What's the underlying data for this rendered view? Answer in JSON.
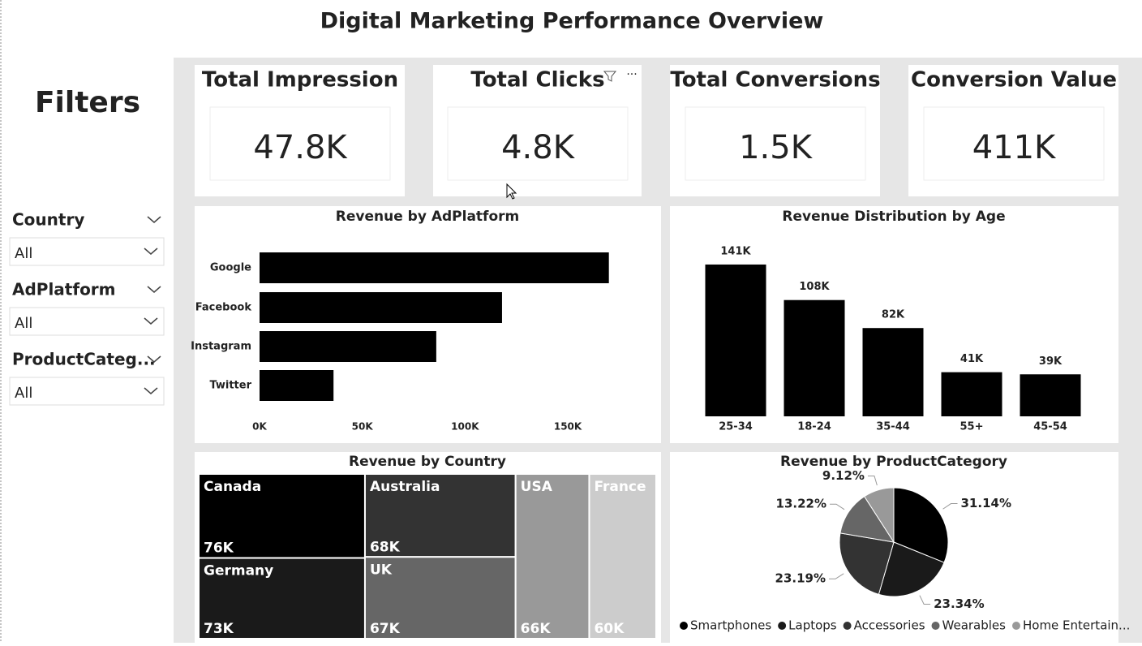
{
  "title": "Digital Marketing Performance Overview",
  "filters": {
    "title": "Filters",
    "items": [
      {
        "label": "Country",
        "value": "All"
      },
      {
        "label": "AdPlatform",
        "value": "All"
      },
      {
        "label": "ProductCateg...",
        "value": "All"
      }
    ]
  },
  "kpis": [
    {
      "label": "Total Impression",
      "value": "47.8K"
    },
    {
      "label": "Total Clicks",
      "value": "4.8K"
    },
    {
      "label": "Total Conversions",
      "value": "1.5K"
    },
    {
      "label": "Conversion Value",
      "value": "411K"
    }
  ],
  "chart_data": [
    {
      "type": "hbar",
      "title": "Revenue by AdPlatform",
      "categories": [
        "Google",
        "Facebook",
        "Instagram",
        "Twitter"
      ],
      "values": [
        170000,
        118000,
        86000,
        36000
      ],
      "color": "#000000",
      "xlim": [
        0,
        185000
      ],
      "xticks": [
        {
          "value": 0,
          "label": "0K"
        },
        {
          "value": 50000,
          "label": "50K"
        },
        {
          "value": 100000,
          "label": "100K"
        },
        {
          "value": 150000,
          "label": "150K"
        }
      ]
    },
    {
      "type": "bar",
      "title": "Revenue Distribution by Age",
      "categories": [
        "25-34",
        "18-24",
        "35-44",
        "55+",
        "45-54"
      ],
      "values": [
        141000,
        108000,
        82000,
        41000,
        39000
      ],
      "value_labels": [
        "141K",
        "108K",
        "82K",
        "41K",
        "39K"
      ],
      "color": "#000000",
      "ylim": [
        0,
        150000
      ]
    },
    {
      "type": "treemap",
      "title": "Revenue by Country",
      "categories": [
        "Canada",
        "Germany",
        "Australia",
        "UK",
        "USA",
        "France"
      ],
      "values": [
        76000,
        73000,
        68000,
        67000,
        66000,
        60000
      ],
      "value_labels": [
        "76K",
        "73K",
        "68K",
        "67K",
        "66K",
        "60K"
      ],
      "colors": [
        "#000000",
        "#1a1a1a",
        "#333333",
        "#666666",
        "#999999",
        "#cccccc"
      ]
    },
    {
      "type": "pie",
      "title": "Revenue by ProductCategory",
      "categories": [
        "Smartphones",
        "Laptops",
        "Accessories",
        "Wearables",
        "Home Entertain..."
      ],
      "values": [
        31.14,
        23.34,
        23.19,
        13.22,
        9.12
      ],
      "value_labels": [
        "31.14%",
        "23.34%",
        "23.19%",
        "13.22%",
        "9.12%"
      ],
      "colors": [
        "#000000",
        "#1a1a1a",
        "#333333",
        "#666666",
        "#999999"
      ]
    }
  ]
}
